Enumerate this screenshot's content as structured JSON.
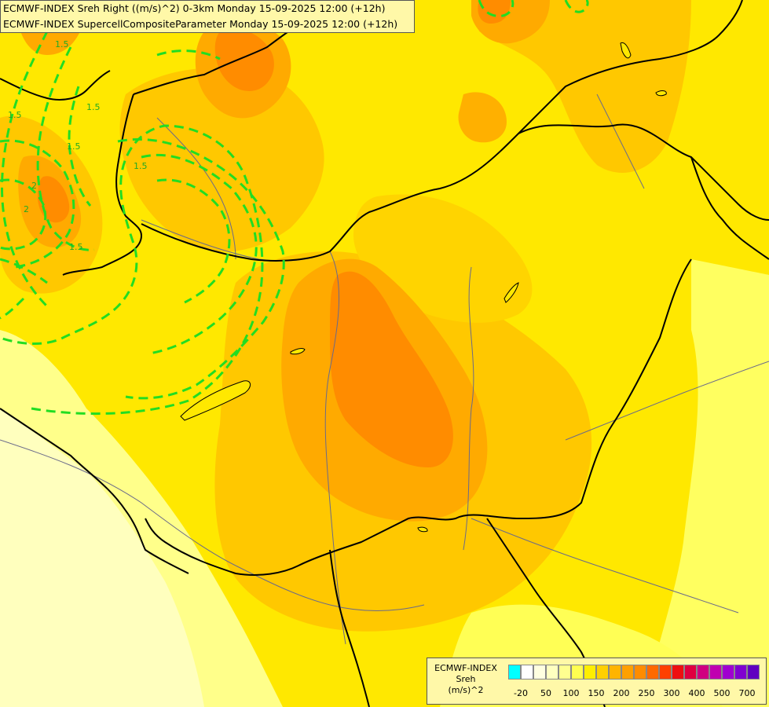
{
  "title": {
    "line1": "ECMWF-INDEX Sreh Right ((m/s)^2) 0-3km Monday 15-09-2025 12:00 (+12h)",
    "line2": "ECMWF-INDEX SupercellCompositeParameter Monday 15-09-2025 12:00 (+12h)"
  },
  "legend": {
    "model": "ECMWF-INDEX",
    "variable": "Sreh",
    "unit": "(m/s)^2",
    "colors": [
      "#00ffff",
      "#ffffff",
      "#ffffe0",
      "#ffffc0",
      "#ffff90",
      "#ffff50",
      "#ffee00",
      "#ffd000",
      "#ffb400",
      "#ffa000",
      "#ff8c00",
      "#ff6a00",
      "#ff4000",
      "#ee1010",
      "#e00040",
      "#d00080",
      "#c000b0",
      "#a000d0",
      "#8000d0",
      "#6000c0",
      "#4000a0",
      "#200080"
    ],
    "tick_labels": [
      "-20",
      "50",
      "100",
      "150",
      "200",
      "250",
      "300",
      "400",
      "500",
      "700"
    ]
  },
  "contour_labels": [
    "1.5",
    "1.5",
    "2",
    "2",
    "1.5",
    "1.5",
    "1.5",
    "1.5"
  ],
  "colors": {
    "background": "#ffe600",
    "contour": "#22dd22",
    "border": "#000000",
    "river": "#6a6a8a"
  }
}
